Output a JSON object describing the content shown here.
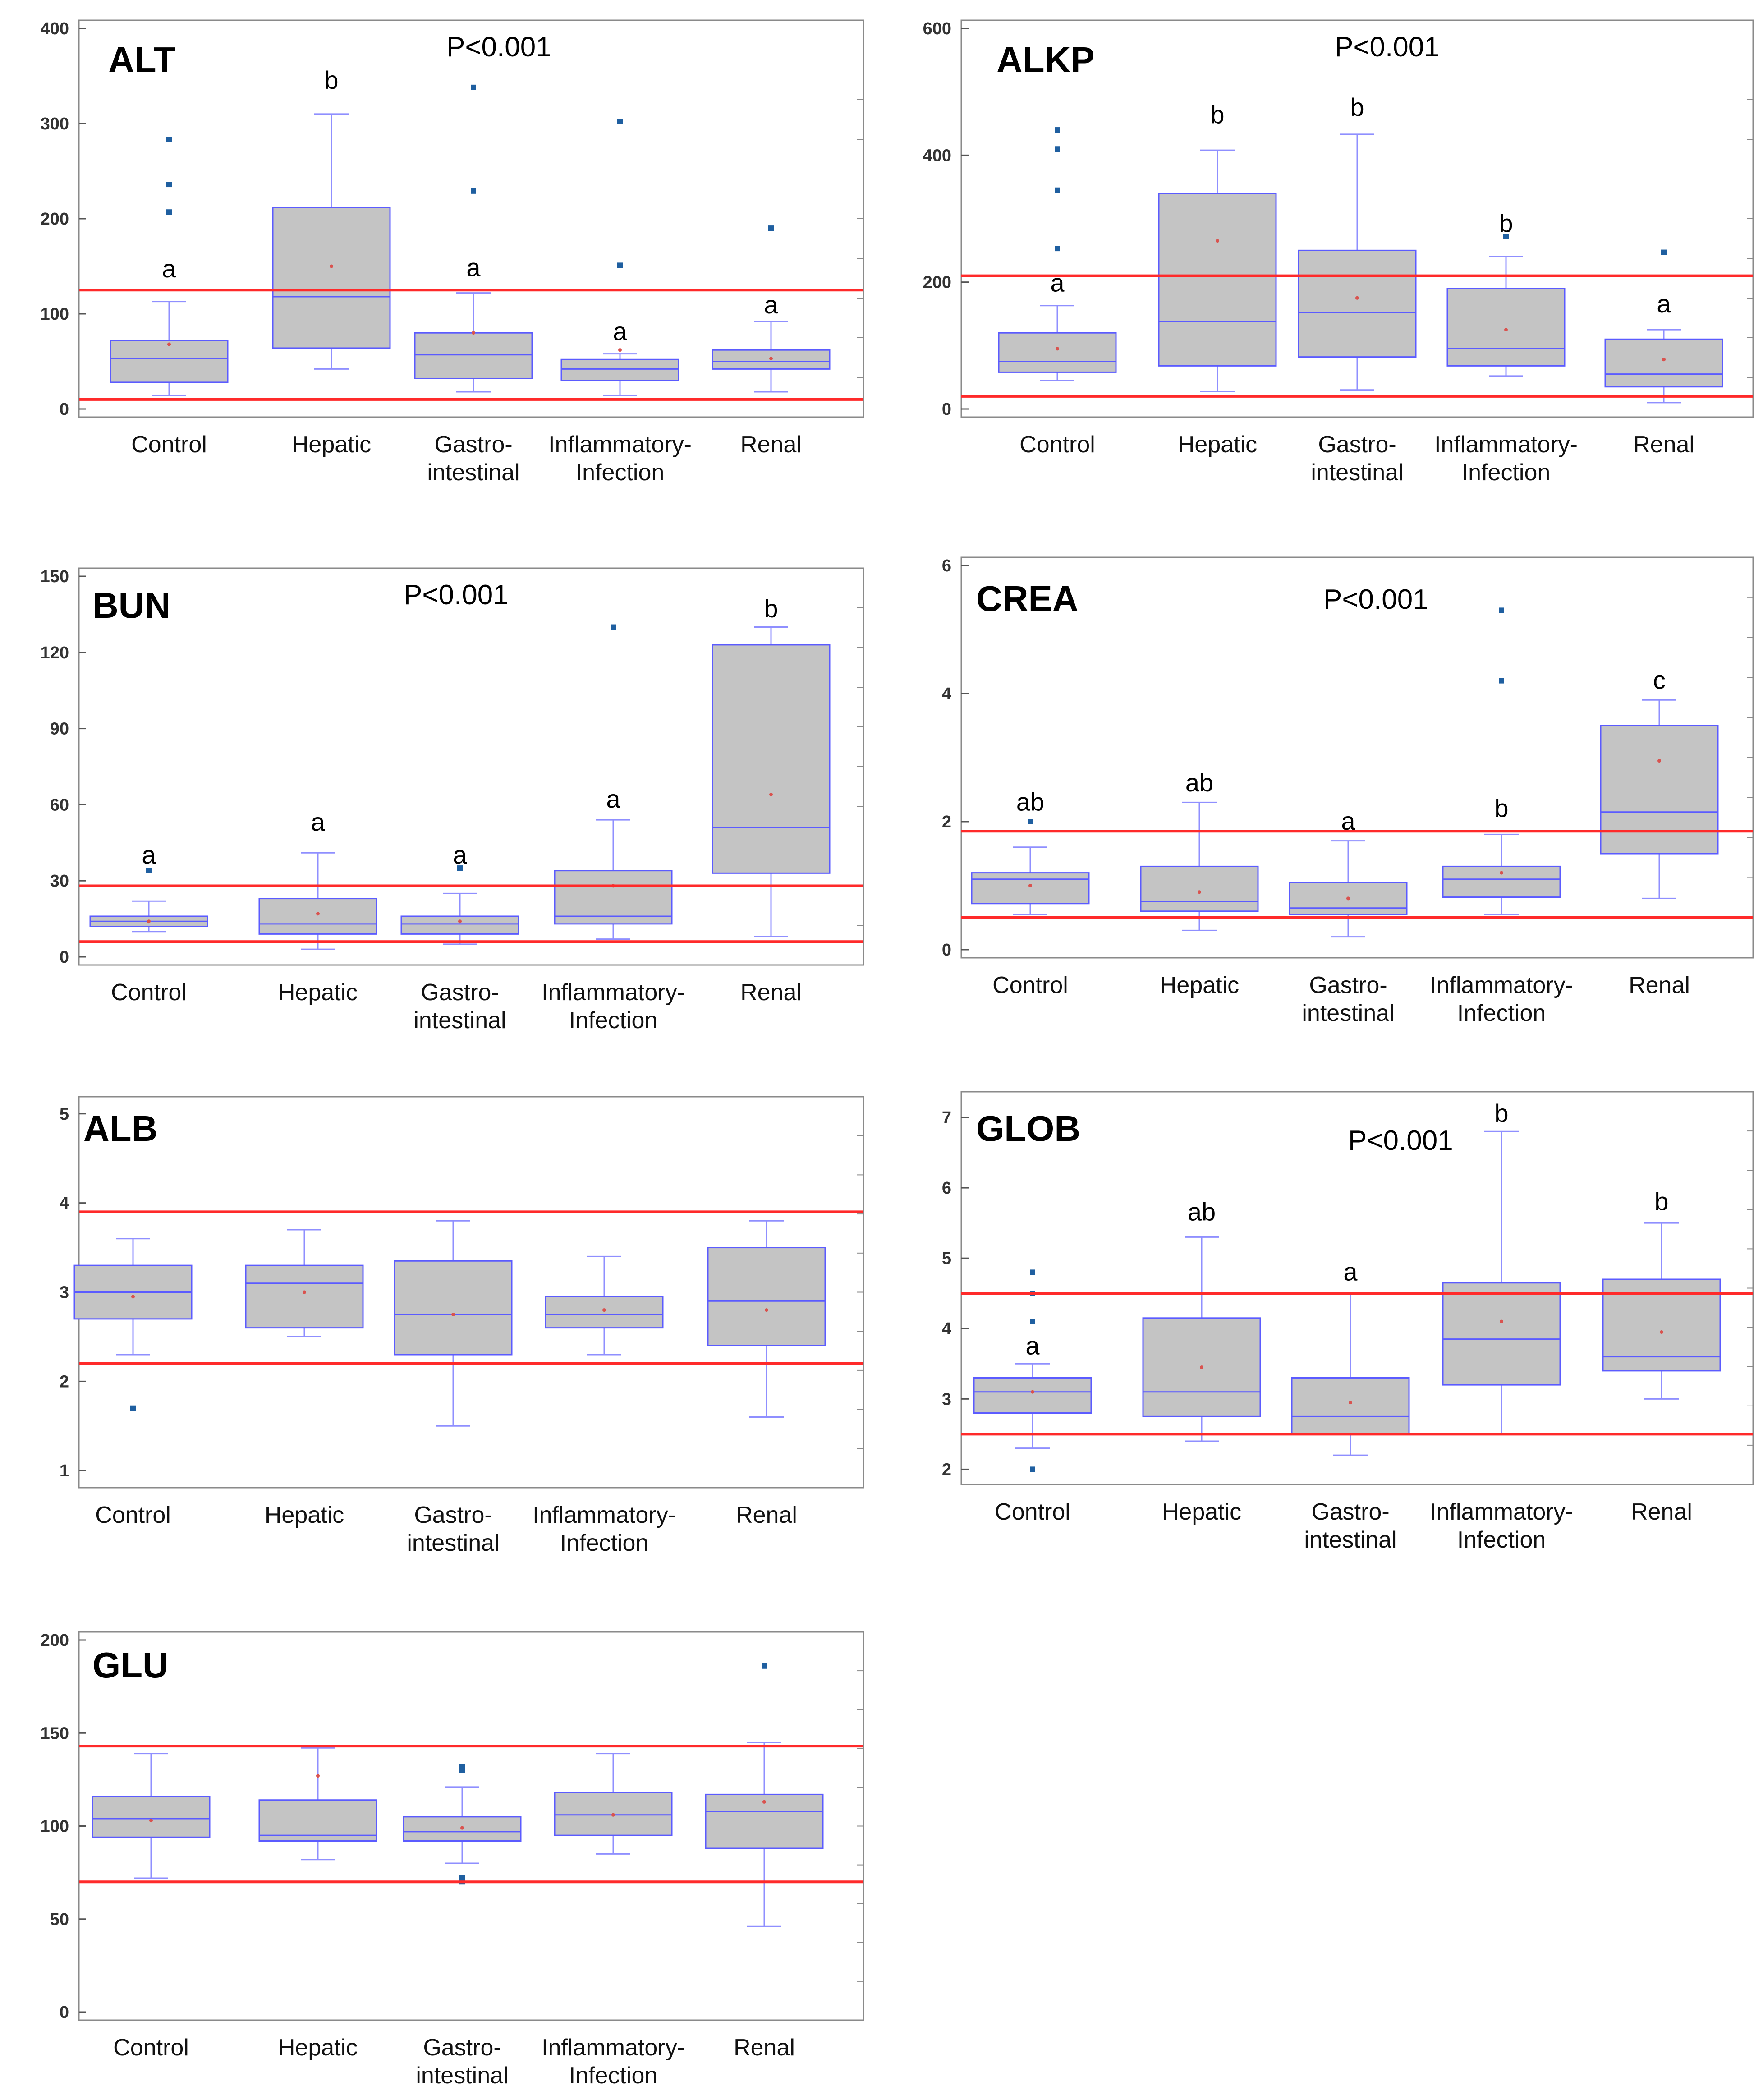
{
  "chart_data": [
    {
      "type": "boxplot",
      "title": "ALT",
      "pvalue": "P<0.001",
      "categories": [
        "Control",
        "Hepatic",
        "Gastro-\nintestinal",
        "Inflammatory-\nInfection",
        "Renal"
      ],
      "yticks": [
        0,
        100,
        200,
        300,
        400
      ],
      "ylim": [
        0,
        400
      ],
      "reference_lines": [
        10,
        125
      ],
      "boxes": [
        {
          "whisker_low": 14,
          "q1": 28,
          "median": 53,
          "q3": 72,
          "whisker_high": 113,
          "mean": 68,
          "outliers": [
            207,
            236,
            283
          ],
          "letter": "a",
          "letter_at": 147
        },
        {
          "whisker_low": 42,
          "q1": 64,
          "median": 118,
          "q3": 212,
          "whisker_high": 310,
          "mean": 150,
          "outliers": [],
          "letter": "b",
          "letter_at": 345
        },
        {
          "whisker_low": 18,
          "q1": 32,
          "median": 57,
          "q3": 80,
          "whisker_high": 122,
          "mean": 80,
          "outliers": [
            229,
            338
          ],
          "letter": "a",
          "letter_at": 148
        },
        {
          "whisker_low": 14,
          "q1": 30,
          "median": 42,
          "q3": 52,
          "whisker_high": 58,
          "mean": 62,
          "outliers": [
            151,
            302
          ],
          "letter": "a",
          "letter_at": 81
        },
        {
          "whisker_low": 18,
          "q1": 42,
          "median": 50,
          "q3": 62,
          "whisker_high": 92,
          "mean": 53,
          "outliers": [
            190
          ],
          "letter": "a",
          "letter_at": 109
        }
      ]
    },
    {
      "type": "boxplot",
      "title": "ALKP",
      "pvalue": "P<0.001",
      "categories": [
        "Control",
        "Hepatic",
        "Gastro-\nintestinal",
        "Inflammatory-\nInfection",
        "Renal"
      ],
      "yticks": [
        0,
        200,
        400,
        600
      ],
      "ylim": [
        0,
        600
      ],
      "reference_lines": [
        20,
        210
      ],
      "boxes": [
        {
          "whisker_low": 45,
          "q1": 58,
          "median": 75,
          "q3": 120,
          "whisker_high": 163,
          "mean": 95,
          "outliers": [
            253,
            345,
            410,
            440
          ],
          "letter": "a",
          "letter_at": 198
        },
        {
          "whisker_low": 28,
          "q1": 68,
          "median": 138,
          "q3": 340,
          "whisker_high": 408,
          "mean": 265,
          "outliers": [],
          "letter": "b",
          "letter_at": 463
        },
        {
          "whisker_low": 30,
          "q1": 82,
          "median": 152,
          "q3": 250,
          "whisker_high": 433,
          "mean": 175,
          "outliers": [],
          "letter": "b",
          "letter_at": 475
        },
        {
          "whisker_low": 52,
          "q1": 68,
          "median": 95,
          "q3": 190,
          "whisker_high": 240,
          "mean": 125,
          "outliers": [
            272
          ],
          "letter": "b",
          "letter_at": 292
        },
        {
          "whisker_low": 10,
          "q1": 35,
          "median": 55,
          "q3": 110,
          "whisker_high": 125,
          "mean": 78,
          "outliers": [
            247
          ],
          "letter": "a",
          "letter_at": 165
        }
      ]
    },
    {
      "type": "boxplot",
      "title": "BUN",
      "pvalue": "P<0.001",
      "categories": [
        "Control",
        "Hepatic",
        "Gastro-\nintestinal",
        "Inflammatory-\nInfection",
        "Renal"
      ],
      "yticks": [
        0,
        30,
        60,
        90,
        120,
        150
      ],
      "ylim": [
        0,
        150
      ],
      "reference_lines": [
        6,
        28
      ],
      "boxes": [
        {
          "whisker_low": 10,
          "q1": 12,
          "median": 14,
          "q3": 16,
          "whisker_high": 22,
          "mean": 14,
          "outliers": [
            34
          ],
          "letter": "a",
          "letter_at": 40
        },
        {
          "whisker_low": 3,
          "q1": 9,
          "median": 13,
          "q3": 23,
          "whisker_high": 41,
          "mean": 17,
          "outliers": [],
          "letter": "a",
          "letter_at": 53
        },
        {
          "whisker_low": 5,
          "q1": 9,
          "median": 13,
          "q3": 16,
          "whisker_high": 25,
          "mean": 14,
          "outliers": [
            35
          ],
          "letter": "a",
          "letter_at": 40
        },
        {
          "whisker_low": 7,
          "q1": 13,
          "median": 16,
          "q3": 34,
          "whisker_high": 54,
          "mean": 28,
          "outliers": [
            130
          ],
          "letter": "a",
          "letter_at": 62
        },
        {
          "whisker_low": 8,
          "q1": 33,
          "median": 51,
          "q3": 123,
          "whisker_high": 130,
          "mean": 64,
          "outliers": [],
          "letter": "b",
          "letter_at": 137
        }
      ]
    },
    {
      "type": "boxplot",
      "title": "CREA",
      "pvalue": "P<0.001",
      "categories": [
        "Control",
        "Hepatic",
        "Gastro-\nintestinal",
        "Inflammatory-\nInfection",
        "Renal"
      ],
      "yticks": [
        0,
        2,
        4,
        6
      ],
      "ylim": [
        0,
        6
      ],
      "reference_lines": [
        0.5,
        1.85
      ],
      "boxes": [
        {
          "whisker_low": 0.55,
          "q1": 0.72,
          "median": 1.1,
          "q3": 1.2,
          "whisker_high": 1.6,
          "mean": 1.0,
          "outliers": [
            2.0
          ],
          "letter": "ab",
          "letter_at": 2.3
        },
        {
          "whisker_low": 0.3,
          "q1": 0.6,
          "median": 0.75,
          "q3": 1.3,
          "whisker_high": 2.3,
          "mean": 0.9,
          "outliers": [],
          "letter": "ab",
          "letter_at": 2.6
        },
        {
          "whisker_low": 0.2,
          "q1": 0.55,
          "median": 0.65,
          "q3": 1.05,
          "whisker_high": 1.7,
          "mean": 0.8,
          "outliers": [],
          "letter": "a",
          "letter_at": 2.0
        },
        {
          "whisker_low": 0.55,
          "q1": 0.82,
          "median": 1.1,
          "q3": 1.3,
          "whisker_high": 1.8,
          "mean": 1.2,
          "outliers": [
            4.2,
            5.3
          ],
          "letter": "b",
          "letter_at": 2.2
        },
        {
          "whisker_low": 0.8,
          "q1": 1.5,
          "median": 2.15,
          "q3": 3.5,
          "whisker_high": 3.9,
          "mean": 2.95,
          "outliers": [],
          "letter": "c",
          "letter_at": 4.2
        }
      ]
    },
    {
      "type": "boxplot",
      "title": "ALB",
      "pvalue": "",
      "categories": [
        "Control",
        "Hepatic",
        "Gastro-\nintestinal",
        "Inflammatory-\nInfection",
        "Renal"
      ],
      "yticks": [
        1,
        2,
        3,
        4,
        5
      ],
      "ylim": [
        0.9,
        5.1
      ],
      "reference_lines": [
        2.2,
        3.9
      ],
      "boxes": [
        {
          "whisker_low": 2.3,
          "q1": 2.7,
          "median": 3.0,
          "q3": 3.3,
          "whisker_high": 3.6,
          "mean": 2.95,
          "outliers": [
            1.7
          ],
          "letter": "",
          "letter_at": 0
        },
        {
          "whisker_low": 2.5,
          "q1": 2.6,
          "median": 3.1,
          "q3": 3.3,
          "whisker_high": 3.7,
          "mean": 3.0,
          "outliers": [],
          "letter": "",
          "letter_at": 0
        },
        {
          "whisker_low": 1.5,
          "q1": 2.3,
          "median": 2.75,
          "q3": 3.35,
          "whisker_high": 3.8,
          "mean": 2.75,
          "outliers": [],
          "letter": "",
          "letter_at": 0
        },
        {
          "whisker_low": 2.3,
          "q1": 2.6,
          "median": 2.75,
          "q3": 2.95,
          "whisker_high": 3.4,
          "mean": 2.8,
          "outliers": [],
          "letter": "",
          "letter_at": 0
        },
        {
          "whisker_low": 1.6,
          "q1": 2.4,
          "median": 2.9,
          "q3": 3.5,
          "whisker_high": 3.8,
          "mean": 2.8,
          "outliers": [],
          "letter": "",
          "letter_at": 0
        }
      ]
    },
    {
      "type": "boxplot",
      "title": "GLOB",
      "pvalue": "P<0.001",
      "categories": [
        "Control",
        "Hepatic",
        "Gastro-\nintestinal",
        "Inflammatory-\nInfection",
        "Renal"
      ],
      "yticks": [
        2,
        3,
        4,
        5,
        6,
        7
      ],
      "ylim": [
        1.9,
        7.25
      ],
      "reference_lines": [
        2.5,
        4.5
      ],
      "boxes": [
        {
          "whisker_low": 2.3,
          "q1": 2.8,
          "median": 3.1,
          "q3": 3.3,
          "whisker_high": 3.5,
          "mean": 3.1,
          "outliers": [
            2.0,
            4.1,
            4.5,
            4.8
          ],
          "letter": "a",
          "letter_at": 3.75
        },
        {
          "whisker_low": 2.4,
          "q1": 2.75,
          "median": 3.1,
          "q3": 4.15,
          "whisker_high": 5.3,
          "mean": 3.45,
          "outliers": [],
          "letter": "ab",
          "letter_at": 5.65
        },
        {
          "whisker_low": 2.2,
          "q1": 2.5,
          "median": 2.75,
          "q3": 3.3,
          "whisker_high": 4.5,
          "mean": 2.95,
          "outliers": [],
          "letter": "a",
          "letter_at": 4.8
        },
        {
          "whisker_low": 2.5,
          "q1": 3.2,
          "median": 3.85,
          "q3": 4.65,
          "whisker_high": 6.8,
          "mean": 4.1,
          "outliers": [],
          "letter": "b",
          "letter_at": 7.05
        },
        {
          "whisker_low": 3.0,
          "q1": 3.4,
          "median": 3.6,
          "q3": 4.7,
          "whisker_high": 5.5,
          "mean": 3.95,
          "outliers": [],
          "letter": "b",
          "letter_at": 5.8
        }
      ]
    },
    {
      "type": "boxplot",
      "title": "GLU",
      "pvalue": "",
      "categories": [
        "Control",
        "Hepatic",
        "Gastro-\nintestinal",
        "Inflammatory-\nInfection",
        "Renal"
      ],
      "yticks": [
        0,
        50,
        100,
        150,
        200
      ],
      "ylim": [
        0,
        200
      ],
      "reference_lines": [
        70,
        143
      ],
      "boxes": [
        {
          "whisker_low": 72,
          "q1": 94,
          "median": 104,
          "q3": 116,
          "whisker_high": 139,
          "mean": 103,
          "outliers": [],
          "letter": "",
          "letter_at": 0
        },
        {
          "whisker_low": 82,
          "q1": 92,
          "median": 95,
          "q3": 114,
          "whisker_high": 142,
          "mean": 127,
          "outliers": [],
          "letter": "",
          "letter_at": 0
        },
        {
          "whisker_low": 80,
          "q1": 92,
          "median": 97,
          "q3": 105,
          "whisker_high": 121,
          "mean": 99,
          "outliers": [
            70,
            72,
            130,
            132
          ],
          "letter": "",
          "letter_at": 0
        },
        {
          "whisker_low": 85,
          "q1": 95,
          "median": 106,
          "q3": 118,
          "whisker_high": 139,
          "mean": 106,
          "outliers": [],
          "letter": "",
          "letter_at": 0
        },
        {
          "whisker_low": 46,
          "q1": 88,
          "median": 108,
          "q3": 117,
          "whisker_high": 145,
          "mean": 113,
          "outliers": [
            186
          ],
          "letter": "",
          "letter_at": 0
        }
      ]
    }
  ],
  "colors": {
    "box_fill": "#c4c4c4",
    "box_stroke": "#5b5bff",
    "whisker": "#8f8fff",
    "reference_line": "#ff2a2a",
    "outlier": "#1f5fa0",
    "mean": "#d9534f",
    "frame": "#8a8a8a"
  }
}
